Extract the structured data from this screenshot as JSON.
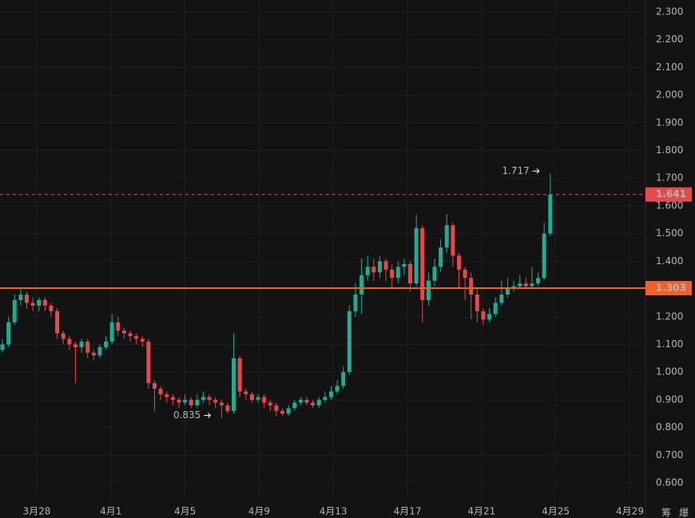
{
  "chart_data": {
    "type": "candlestick",
    "ylim": [
      0.534,
      2.343
    ],
    "yticks": [
      {
        "value": 0.6,
        "label": "0.600"
      },
      {
        "value": 0.7,
        "label": "0.700"
      },
      {
        "value": 0.8,
        "label": "0.800"
      },
      {
        "value": 0.9,
        "label": "0.900"
      },
      {
        "value": 1.0,
        "label": "1.000"
      },
      {
        "value": 1.1,
        "label": "1.100"
      },
      {
        "value": 1.2,
        "label": "1.200"
      },
      {
        "value": 1.3,
        "label": "1.300"
      },
      {
        "value": 1.4,
        "label": "1.400"
      },
      {
        "value": 1.5,
        "label": "1.500"
      },
      {
        "value": 1.6,
        "label": "1.600"
      },
      {
        "value": 1.7,
        "label": "1.700"
      },
      {
        "value": 1.8,
        "label": "1.800"
      },
      {
        "value": 1.9,
        "label": "1.900"
      },
      {
        "value": 2.0,
        "label": "2.000"
      },
      {
        "value": 2.1,
        "label": "2.100"
      },
      {
        "value": 2.2,
        "label": "2.200"
      },
      {
        "value": 2.3,
        "label": "2.300"
      }
    ],
    "xlim": [
      -1.98,
      32.84
    ],
    "xticks": [
      {
        "value": 0,
        "label": "3月28"
      },
      {
        "value": 4,
        "label": "4月1"
      },
      {
        "value": 8,
        "label": "4月5"
      },
      {
        "value": 12,
        "label": "4月9"
      },
      {
        "value": 16,
        "label": "4月13"
      },
      {
        "value": 20,
        "label": "4月17"
      },
      {
        "value": 24,
        "label": "4月21"
      },
      {
        "value": 28,
        "label": "4月25"
      },
      {
        "value": 32,
        "label": "4月29"
      }
    ],
    "grid": true,
    "up_color": "#22ab94",
    "down_color": "#e5484d",
    "open": [
      1.08,
      1.1,
      1.18,
      1.26,
      1.28,
      1.25,
      1.24,
      1.26,
      1.24,
      1.22,
      1.14,
      1.12,
      1.1,
      1.09,
      1.11,
      1.07,
      1.06,
      1.09,
      1.11,
      1.18,
      1.15,
      1.14,
      1.13,
      1.12,
      1.11,
      0.96,
      0.94,
      0.92,
      0.91,
      0.9,
      0.89,
      0.9,
      0.88,
      0.9,
      0.91,
      0.9,
      0.89,
      0.88,
      0.86,
      1.05,
      0.93,
      0.92,
      0.9,
      0.91,
      0.89,
      0.88,
      0.86,
      0.85,
      0.87,
      0.89,
      0.9,
      0.89,
      0.88,
      0.9,
      0.91,
      0.93,
      0.95,
      1.0,
      1.22,
      1.28,
      1.35,
      1.38,
      1.36,
      1.4,
      1.37,
      1.34,
      1.38,
      1.39,
      1.32,
      1.52,
      1.26,
      1.33,
      1.38,
      1.45,
      1.53,
      1.42,
      1.37,
      1.34,
      1.28,
      1.22,
      1.19,
      1.21,
      1.25,
      1.28,
      1.3,
      1.31,
      1.32,
      1.31,
      1.32,
      1.34,
      1.5
    ],
    "high": [
      1.12,
      1.2,
      1.28,
      1.3,
      1.29,
      1.27,
      1.27,
      1.27,
      1.25,
      1.23,
      1.15,
      1.13,
      1.11,
      1.12,
      1.12,
      1.08,
      1.1,
      1.13,
      1.21,
      1.2,
      1.16,
      1.15,
      1.14,
      1.13,
      1.12,
      0.97,
      0.95,
      0.93,
      0.92,
      0.91,
      0.92,
      0.91,
      0.92,
      0.93,
      0.92,
      0.91,
      0.9,
      0.89,
      1.14,
      1.06,
      0.94,
      0.93,
      0.92,
      0.92,
      0.9,
      0.89,
      0.87,
      0.88,
      0.9,
      0.91,
      0.91,
      0.9,
      0.91,
      0.93,
      0.95,
      0.97,
      1.02,
      1.24,
      1.32,
      1.41,
      1.42,
      1.41,
      1.42,
      1.41,
      1.39,
      1.4,
      1.41,
      1.4,
      1.57,
      1.53,
      1.36,
      1.41,
      1.48,
      1.57,
      1.54,
      1.43,
      1.38,
      1.36,
      1.3,
      1.23,
      1.23,
      1.27,
      1.33,
      1.34,
      1.33,
      1.35,
      1.34,
      1.38,
      1.36,
      1.54,
      1.717
    ],
    "low": [
      1.07,
      1.09,
      1.17,
      1.24,
      1.23,
      1.22,
      1.22,
      1.22,
      1.2,
      1.12,
      1.1,
      1.08,
      0.96,
      1.07,
      1.05,
      1.04,
      1.05,
      1.08,
      1.1,
      1.13,
      1.12,
      1.11,
      1.1,
      1.09,
      0.94,
      0.86,
      0.9,
      0.89,
      0.88,
      0.87,
      0.88,
      0.87,
      0.87,
      0.89,
      0.88,
      0.87,
      0.835,
      0.85,
      0.85,
      0.91,
      0.9,
      0.89,
      0.89,
      0.87,
      0.86,
      0.84,
      0.84,
      0.84,
      0.86,
      0.88,
      0.88,
      0.87,
      0.87,
      0.89,
      0.9,
      0.92,
      0.94,
      0.99,
      1.2,
      1.21,
      1.33,
      1.33,
      1.34,
      1.33,
      1.3,
      1.32,
      1.35,
      1.29,
      1.31,
      1.18,
      1.24,
      1.31,
      1.36,
      1.43,
      1.38,
      1.3,
      1.26,
      1.19,
      1.18,
      1.17,
      1.18,
      1.2,
      1.24,
      1.27,
      1.29,
      1.3,
      1.3,
      1.3,
      1.31,
      1.33,
      1.49
    ],
    "close": [
      1.1,
      1.18,
      1.26,
      1.28,
      1.25,
      1.24,
      1.26,
      1.24,
      1.22,
      1.14,
      1.12,
      1.1,
      1.09,
      1.11,
      1.07,
      1.06,
      1.09,
      1.11,
      1.18,
      1.15,
      1.14,
      1.13,
      1.12,
      1.11,
      0.96,
      0.94,
      0.92,
      0.91,
      0.9,
      0.89,
      0.9,
      0.88,
      0.9,
      0.91,
      0.9,
      0.89,
      0.88,
      0.86,
      1.05,
      0.93,
      0.92,
      0.9,
      0.91,
      0.89,
      0.88,
      0.86,
      0.85,
      0.87,
      0.89,
      0.9,
      0.89,
      0.88,
      0.9,
      0.91,
      0.93,
      0.95,
      1.0,
      1.22,
      1.28,
      1.35,
      1.38,
      1.36,
      1.4,
      1.37,
      1.34,
      1.38,
      1.39,
      1.32,
      1.52,
      1.26,
      1.33,
      1.38,
      1.45,
      1.53,
      1.42,
      1.37,
      1.34,
      1.28,
      1.22,
      1.19,
      1.21,
      1.25,
      1.28,
      1.3,
      1.31,
      1.32,
      1.31,
      1.32,
      1.34,
      1.5,
      1.641
    ],
    "price_lines": [
      {
        "value": 1.303,
        "label": "1.303",
        "color": "#f0602a",
        "style": "solid"
      },
      {
        "value": 1.641,
        "label": "1.641",
        "color": "#e5484d",
        "style": "dashed"
      }
    ],
    "annotations": [
      {
        "value": 1.717,
        "label": "1.717",
        "index": 90
      },
      {
        "value": 0.835,
        "label": "0.835",
        "index": 36
      }
    ],
    "footer_buttons": [
      "筹",
      "爆"
    ]
  }
}
